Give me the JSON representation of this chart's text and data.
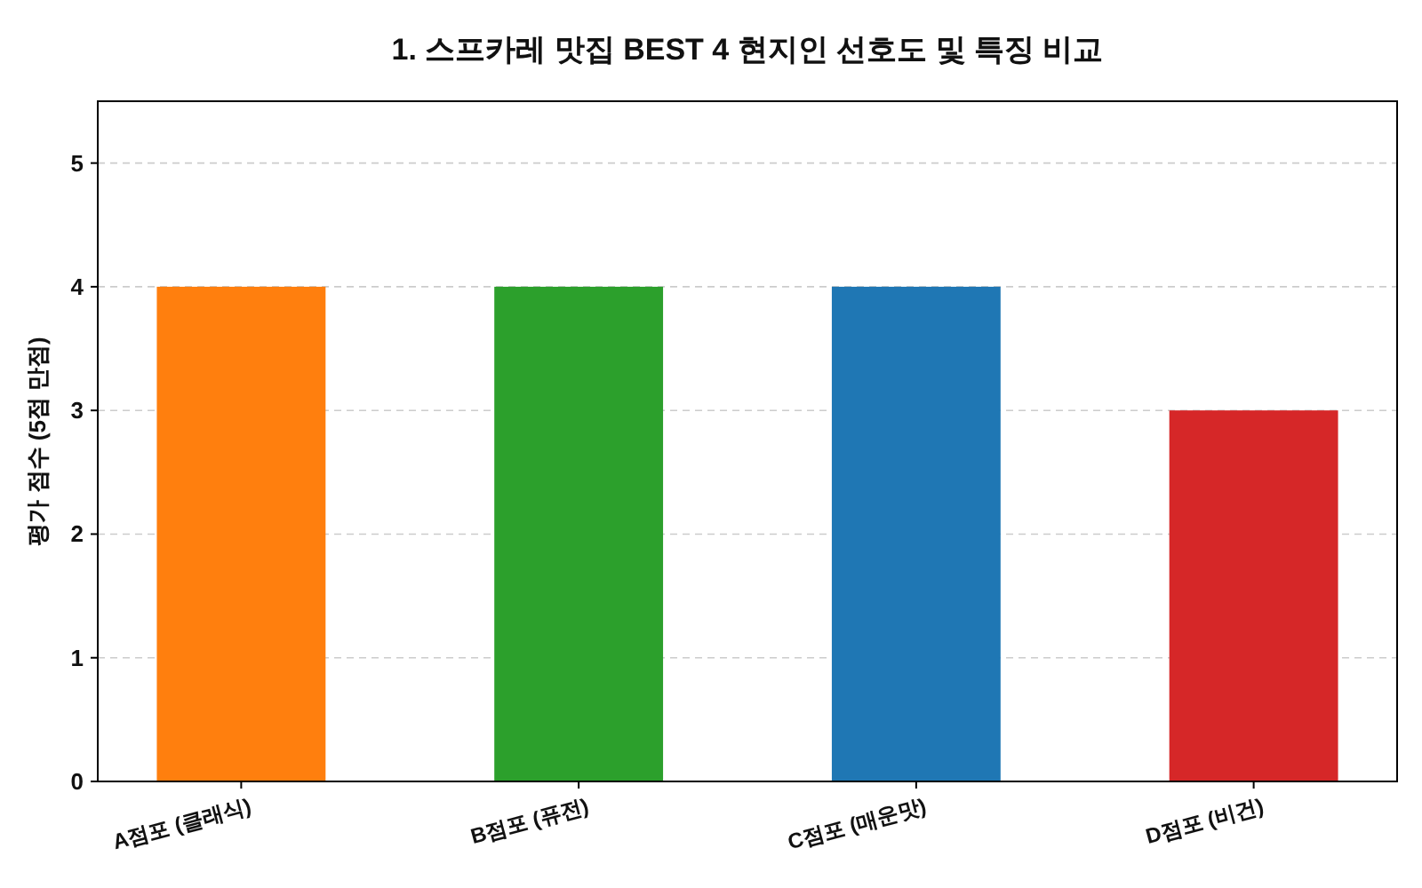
{
  "chart_data": {
    "type": "bar",
    "title": "1. 스프카레 맛집 BEST 4 현지인 선호도 및 특징 비교",
    "ylabel": "평가 점수 (5점 만점)",
    "categories": [
      "A점포 (클래식)",
      "B점포 (퓨전)",
      "C점포 (매운맛)",
      "D점포 (비건)"
    ],
    "values": [
      4,
      4,
      4,
      3
    ],
    "colors": [
      "#ff7f0e",
      "#2ca02c",
      "#1f77b4",
      "#d62728"
    ],
    "ylim": [
      0,
      5.5
    ],
    "yticks": [
      0,
      1,
      2,
      3,
      4,
      5
    ],
    "grid": "y"
  }
}
